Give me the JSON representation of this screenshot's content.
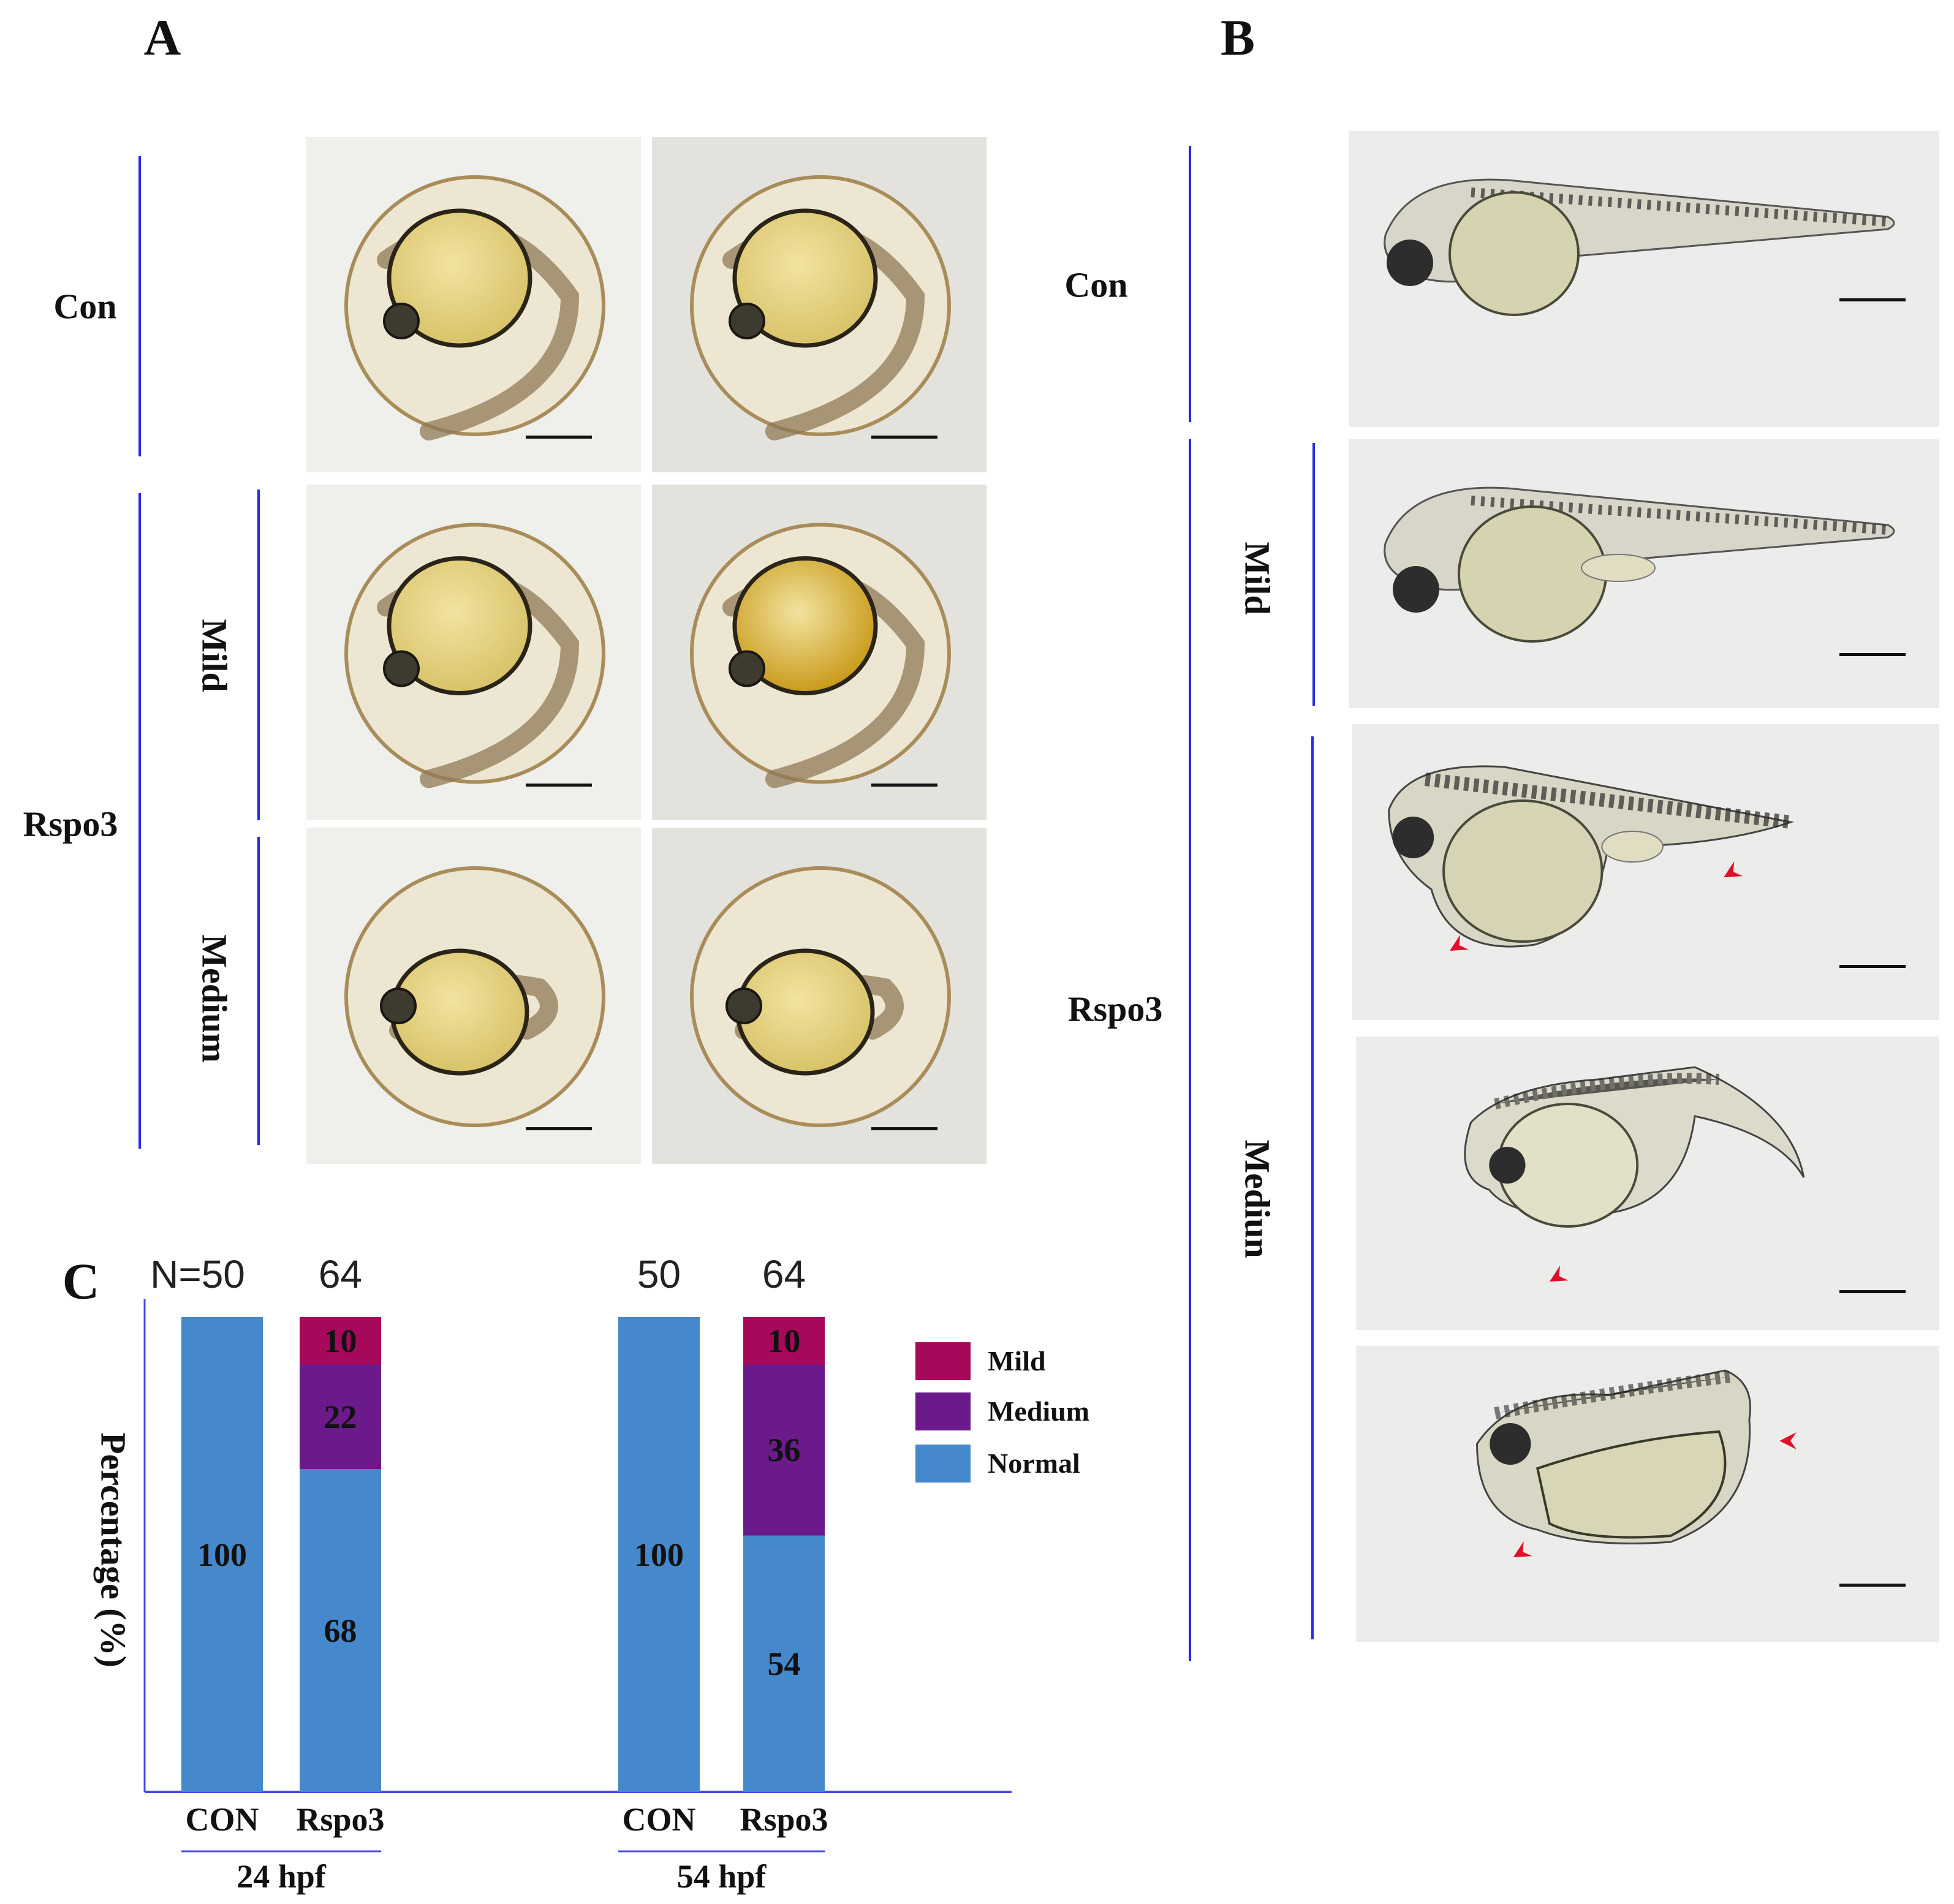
{
  "panels": {
    "A": {
      "letter": "A",
      "con_label": "Con",
      "rspo3_label": "Rspo3",
      "mild_label": "Mild",
      "medium_label": "Medium"
    },
    "B": {
      "letter": "B",
      "con_label": "Con",
      "rspo3_label": "Rspo3",
      "mild_label": "Mild",
      "medium_label": "Mediun"
    },
    "C": {
      "letter": "C"
    }
  },
  "colors": {
    "normal": "#4588cb",
    "medium": "#6a1a8a",
    "mild": "#a6085a",
    "axis": "#4a4ae8",
    "arrowhead": "#e0102a"
  },
  "chart_data": {
    "type": "bar",
    "stacked": true,
    "title": "",
    "ylabel": "Percentage (%)",
    "xlabel": "",
    "ylim": [
      0,
      100
    ],
    "categories": [
      "CON",
      "Rspo3",
      "CON",
      "Rspo3"
    ],
    "groups": [
      {
        "label": "24 hpf",
        "members": [
          0,
          1
        ]
      },
      {
        "label": "54 hpf",
        "members": [
          2,
          3
        ]
      }
    ],
    "n_labels": [
      "N=50",
      "64",
      "50",
      "64"
    ],
    "series": [
      {
        "name": "Normal",
        "values": [
          100,
          68,
          100,
          54
        ]
      },
      {
        "name": "Medium",
        "values": [
          0,
          22,
          0,
          36
        ]
      },
      {
        "name": "Mild",
        "values": [
          0,
          10,
          0,
          10
        ]
      }
    ],
    "legend": {
      "position": "right",
      "entries": [
        "Mild",
        "Medium",
        "Normal"
      ]
    },
    "grid": false
  }
}
